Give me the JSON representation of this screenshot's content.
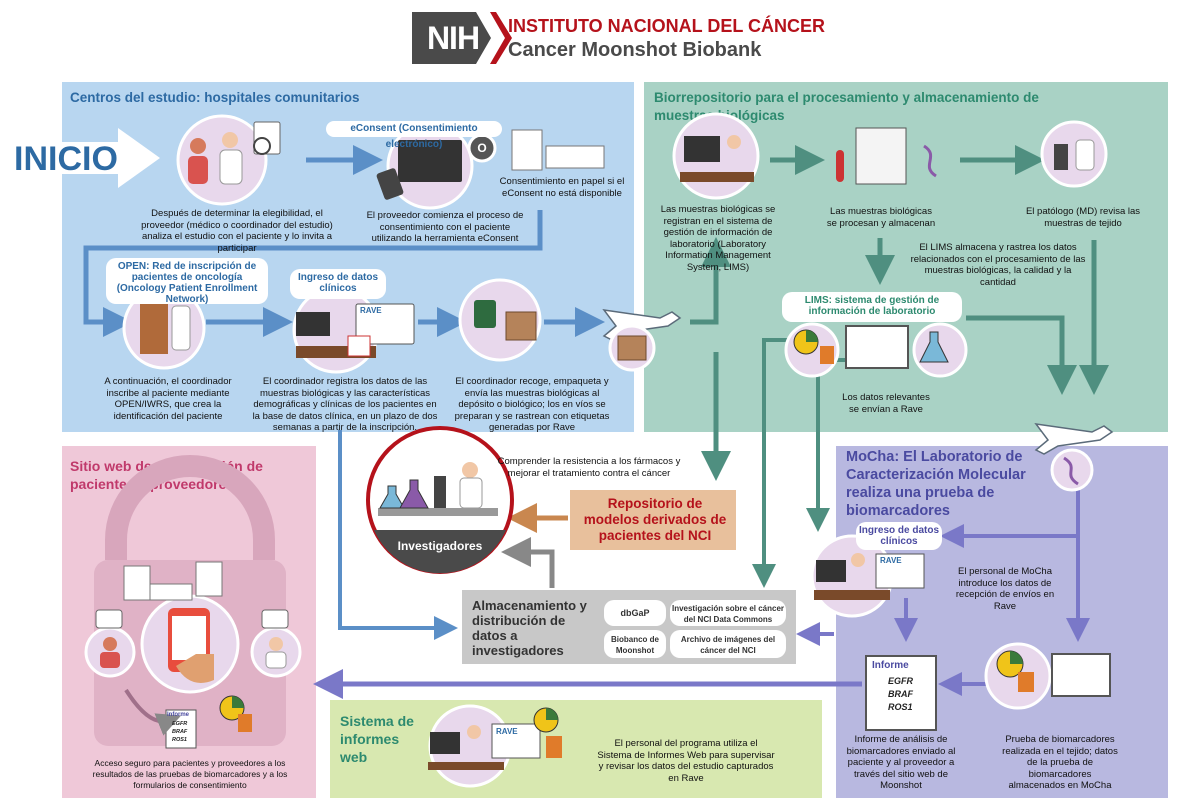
{
  "header": {
    "logo_text": "NIH",
    "line1": "INSTITUTO NACIONAL DEL CÁNCER",
    "line2": "Cancer Moonshot Biobank"
  },
  "colors": {
    "blue_panel": "#b8d6f0",
    "green_panel": "#a9d2c5",
    "pink_panel": "#efc8d8",
    "purple_panel": "#b8b8e0",
    "lime_panel": "#d8e8b0",
    "gray_panel": "#c8c8c8",
    "tan_box": "#e8c09c",
    "nci_red": "#b5121b",
    "text_blue": "#2d6aa3",
    "text_green": "#2d8a6f",
    "text_pink": "#c0396b",
    "text_purple": "#4a4aa0"
  },
  "start_label": "INICIO",
  "study_centers": {
    "title": "Centros del estudio: hospitales comunitarios",
    "step1_text": "Después de determinar la elegibilidad, el proveedor (médico o coordinador del estudio) analiza el estudio con el paciente y lo invita a participar",
    "econsent_bubble": "eConsent (Consentimiento electrónico)",
    "or_label": "O",
    "paper_text": "Consentimiento en papel si el eConsent no está disponible",
    "step2_text": "El proveedor comienza el proceso de consentimiento con el paciente utilizando la herramienta eConsent",
    "open_bubble": "OPEN: Red de inscripción de pacientes de oncología (Oncology Patient Enrollment Network)",
    "step3_text": "A continuación, el coordinador inscribe al paciente mediante OPEN/IWRS, que crea la identificación del paciente",
    "clinical_bubble": "Ingreso de datos clínicos",
    "rave_label": "RAVE",
    "step4_text": "El coordinador registra los datos de las muestras biológicas y las características demográficas y clínicas de los pacientes en la base de datos clínica, en un plazo de dos semanas a partir de la inscripción.",
    "step5_text": "El coordinador recoge, empaqueta y envía las muestras biológicas al depósito o biológico; los en víos se preparan y se rastrean con etiquetas generadas por Rave"
  },
  "biorepository": {
    "title": "Biorrepositorio para el procesamiento y almacenamiento de muestras biológicas",
    "step1_text": "Las muestras biológicas se registran en el sistema de gestión de información de laboratorio (Laboratory Information Management System, LIMS)",
    "step2_text": "Las muestras biológicas se procesan y almacenan",
    "step3_text": "El patólogo (MD) revisa las muestras de tejido",
    "lims_text": "El LIMS almacena y rastrea los datos relacionados con el procesamiento de las muestras biológicas, la calidad y la cantidad",
    "lims_bubble": "LIMS: sistema de gestión de información de laboratorio",
    "relevant_text": "Los datos relevantes se envían a Rave"
  },
  "investigators": {
    "top_text": "Comprender la resistencia a los fármacos y mejorar el tratamiento contra el cáncer",
    "label": "Investigadores",
    "pdm_title": "Repositorio de modelos derivados de pacientes del NCI"
  },
  "storage": {
    "title": "Almacenamiento y distribución de datos a investigadores",
    "items": [
      "dbGaP",
      "Investigación sobre el cáncer del NCI Data Commons",
      "Biobanco de Moonshot",
      "Archivo de imágenes del cáncer del NCI"
    ]
  },
  "portal": {
    "title": "Sitio web de participación de pacientes y proveedores",
    "report_label": "Informe",
    "genes": [
      "EGFR",
      "BRAF",
      "ROS1"
    ],
    "text": "Acceso seguro para pacientes y proveedores a los resultados de las pruebas de biomarcadores y a los formularios de consentimiento"
  },
  "mocha": {
    "title": "MoCha: El Laboratorio de Caracterización Molecular realiza una prueba de biomarcadores",
    "clinical_bubble": "Ingreso de datos clínicos",
    "rave_label": "RAVE",
    "staff_text": "El personal de MoCha introduce los datos de recepción de envíos en Rave",
    "report_label": "Informe",
    "genes": [
      "EGFR",
      "BRAF",
      "ROS1"
    ],
    "report_text": "Informe de análisis de biomarcadores enviado al paciente y al proveedor a través del sitio web de Moonshot",
    "test_text": "Prueba de biomarcadores realizada en el tejido; datos de la prueba de biomarcadores almacenados en MoCha"
  },
  "reporting": {
    "title": "Sistema de informes web",
    "rave_label": "RAVE",
    "text": "El personal del programa utiliza el Sistema de Informes Web para supervisar y revisar los datos del estudio capturados en Rave"
  }
}
